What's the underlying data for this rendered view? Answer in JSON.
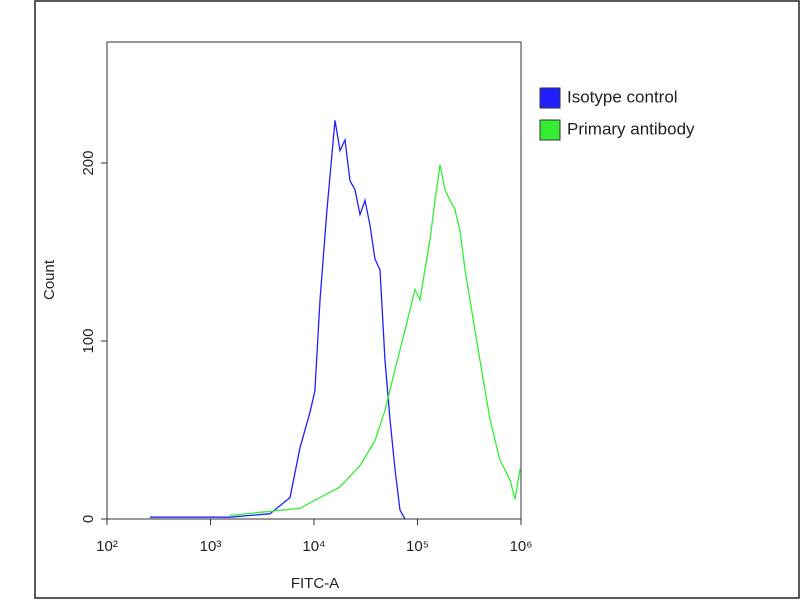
{
  "chart_data": {
    "type": "line",
    "xlabel": "FITC-A",
    "ylabel": "Count",
    "xscale": "log",
    "xlim": [
      100,
      1000000
    ],
    "ylim": [
      0,
      268
    ],
    "xticks": [
      {
        "value": 100,
        "label": "10²"
      },
      {
        "value": 1000,
        "label": "10³"
      },
      {
        "value": 10000,
        "label": "10⁴"
      },
      {
        "value": 100000,
        "label": "10⁵"
      },
      {
        "value": 1000000,
        "label": "10⁶"
      }
    ],
    "yticks": [
      0,
      100,
      200
    ],
    "grid": false,
    "legend": "right",
    "series": [
      {
        "name": "Isotype control",
        "color": "#1f1fff",
        "x": [
          260,
          1540,
          3760,
          5860,
          7330,
          9140,
          10200,
          11430,
          13360,
          15960,
          17820,
          19950,
          22280,
          24890,
          27800,
          31120,
          34750,
          38810,
          43450,
          48530,
          54200,
          60670,
          67760,
          75700
        ],
        "values": [
          1,
          1,
          3,
          12,
          40,
          60,
          72,
          123,
          174,
          224,
          207,
          213,
          190,
          185,
          171,
          179,
          165,
          146,
          140,
          89,
          56,
          28,
          5,
          0
        ]
      },
      {
        "name": "Primary antibody",
        "color": "#33ee33",
        "x": [
          1540,
          7330,
          11430,
          17820,
          27800,
          38810,
          48530,
          60670,
          75700,
          94600,
          105700,
          118000,
          132000,
          147600,
          164900,
          184500,
          206100,
          230000,
          257500,
          287700,
          321500,
          401800,
          501200,
          626500,
          783000,
          875000,
          977000
        ],
        "values": [
          2,
          6,
          12,
          18,
          30,
          44,
          61,
          84,
          106,
          129,
          123,
          140,
          157,
          179,
          199,
          185,
          179,
          174,
          162,
          140,
          123,
          89,
          56,
          33,
          22,
          11,
          28
        ]
      }
    ]
  }
}
